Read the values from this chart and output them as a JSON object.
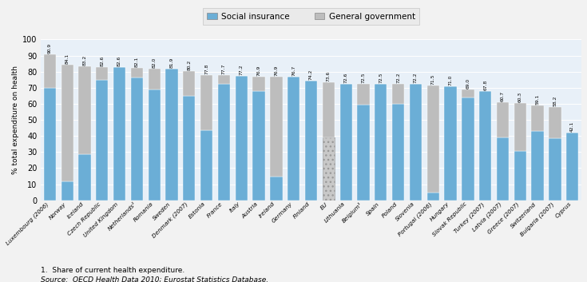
{
  "categories": [
    "Luxembourg (2006)",
    "Norway",
    "Iceland",
    "Czech Republic",
    "United Kingdom",
    "Netherlands¹",
    "Romania",
    "Sweden",
    "Denmark (2007)",
    "Estonia",
    "France",
    "Italy",
    "Austria",
    "Ireland",
    "Germany",
    "Finland",
    "EU",
    "Lithuania",
    "Belgium¹",
    "Spain",
    "Poland",
    "Slovenia",
    "Portugal (2006)",
    "Hungary",
    "Slovak Republic",
    "Turkey (2007)",
    "Latvia (2007)",
    "Greece (2007)",
    "Switzerland",
    "Bulgaria (2007)",
    "Cyprus"
  ],
  "totals": [
    90.9,
    84.1,
    83.2,
    82.6,
    82.6,
    82.1,
    82.0,
    81.9,
    80.2,
    77.8,
    77.7,
    77.2,
    76.9,
    76.9,
    76.7,
    74.2,
    73.6,
    72.6,
    72.5,
    72.5,
    72.2,
    72.2,
    71.5,
    71.0,
    69.0,
    67.8,
    60.7,
    60.3,
    59.1,
    58.2,
    42.1
  ],
  "social_insurance": [
    70.0,
    11.5,
    28.5,
    75.0,
    82.6,
    76.5,
    69.0,
    81.9,
    65.0,
    43.5,
    72.5,
    77.2,
    68.0,
    14.5,
    76.7,
    74.2,
    39.0,
    72.6,
    59.5,
    72.5,
    60.0,
    72.2,
    5.0,
    71.0,
    64.0,
    67.8,
    39.0,
    30.5,
    43.0,
    38.5,
    42.1
  ],
  "eu_index": 16,
  "social_color": "#6BAED6",
  "govt_color": "#BDBDBD",
  "eu_social_hatch_color": "#C8C8C8",
  "legend_bg": "#E8E8E8",
  "plot_bg": "#E8F0F8",
  "fig_bg": "#F2F2F2",
  "ylabel": "% total expenditure on health",
  "ylim": [
    0,
    100
  ],
  "yticks": [
    0,
    10,
    20,
    30,
    40,
    50,
    60,
    70,
    80,
    90,
    100
  ],
  "legend_labels": [
    "Social insurance",
    "General government"
  ],
  "footnote": "1.  Share of current health expenditure.",
  "source": "Source:  OECD Health Data 2010; Eurostat Statistics Database."
}
